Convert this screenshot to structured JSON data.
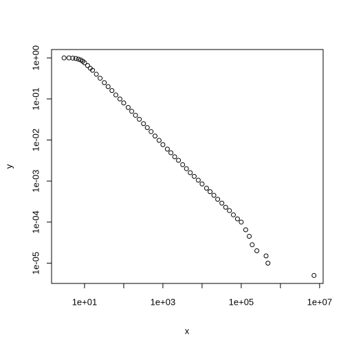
{
  "chart_data": {
    "type": "scatter",
    "xlabel": "x",
    "ylabel": "y",
    "log_x": true,
    "log_y": true,
    "color": "#000000",
    "x": [
      3,
      4,
      5,
      6,
      7,
      8,
      9,
      10,
      12,
      14,
      16,
      20,
      25,
      32,
      40,
      50,
      63,
      80,
      100,
      130,
      160,
      200,
      250,
      320,
      400,
      500,
      630,
      800,
      1000,
      1300,
      1600,
      2000,
      2500,
      3200,
      4000,
      5000,
      6300,
      8000,
      10000,
      13000,
      16000,
      20000,
      25000,
      32000,
      40000,
      50000,
      63000,
      80000,
      100000,
      130000,
      160000,
      190000,
      250000,
      430000,
      480000,
      7200000
    ],
    "y": [
      1,
      1,
      0.99,
      0.97,
      0.93,
      0.89,
      0.83,
      0.76,
      0.65,
      0.56,
      0.5,
      0.4,
      0.32,
      0.25,
      0.2,
      0.16,
      0.125,
      0.1,
      0.08,
      0.062,
      0.05,
      0.04,
      0.032,
      0.025,
      0.02,
      0.016,
      0.0125,
      0.0098,
      0.0077,
      0.006,
      0.0049,
      0.0039,
      0.0032,
      0.0025,
      0.002,
      0.0016,
      0.0013,
      0.00105,
      0.00085,
      0.00067,
      0.00055,
      0.00045,
      0.00036,
      0.00029,
      0.00023,
      0.00019,
      0.00015,
      0.00012,
      0.0001,
      6.5e-05,
      4.5e-05,
      2.8e-05,
      2e-05,
      1.5e-05,
      1e-05,
      5e-06
    ],
    "xlim": [
      1.44,
      12300000
    ],
    "ylim": [
      3.2e-06,
      1.6
    ],
    "xticks": [
      {
        "value": 10,
        "label": "1e+01"
      },
      {
        "value": 1000,
        "label": "1e+03"
      },
      {
        "value": 100000,
        "label": "1e+05"
      },
      {
        "value": 10000000,
        "label": "1e+07"
      }
    ],
    "x_minor_ticks": [
      100,
      10000,
      1000000
    ],
    "yticks": [
      {
        "value": 1,
        "label": "1e+00"
      },
      {
        "value": 0.1,
        "label": "1e-01"
      },
      {
        "value": 0.01,
        "label": "1e-02"
      },
      {
        "value": 0.001,
        "label": "1e-03"
      },
      {
        "value": 0.0001,
        "label": "1e-04"
      },
      {
        "value": 1e-05,
        "label": "1e-05"
      }
    ]
  }
}
